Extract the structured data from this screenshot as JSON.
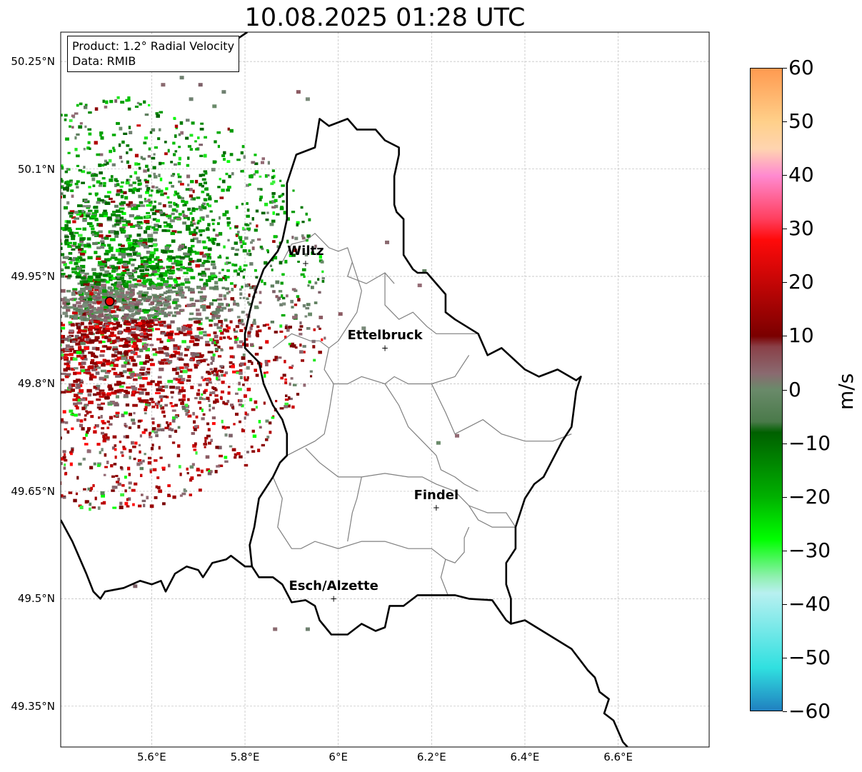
{
  "title": "10.08.2025 01:28 UTC",
  "info": {
    "product": "Product: 1.2° Radial Velocity",
    "data": "Data: RMIB"
  },
  "axes": {
    "lon_range": [
      5.405,
      6.795
    ],
    "lat_range": [
      49.293,
      50.291
    ],
    "lat_ticks": [
      {
        "value": 50.25,
        "label": "50.25°N"
      },
      {
        "value": 50.1,
        "label": "50.1°N"
      },
      {
        "value": 49.95,
        "label": "49.95°N"
      },
      {
        "value": 49.8,
        "label": "49.8°N"
      },
      {
        "value": 49.65,
        "label": "49.65°N"
      },
      {
        "value": 49.5,
        "label": "49.5°N"
      },
      {
        "value": 49.35,
        "label": "49.35°N"
      }
    ],
    "lon_ticks": [
      {
        "value": 5.6,
        "label": "5.6°E"
      },
      {
        "value": 5.8,
        "label": "5.8°E"
      },
      {
        "value": 6.0,
        "label": "6°E"
      },
      {
        "value": 6.2,
        "label": "6.2°E"
      },
      {
        "value": 6.4,
        "label": "6.4°E"
      },
      {
        "value": 6.6,
        "label": "6.6°E"
      }
    ],
    "grid": true
  },
  "radar": {
    "lon": 5.51,
    "lat": 49.915,
    "marker_color": "#ee0000"
  },
  "cities": [
    {
      "name": "Wiltz",
      "lon": 5.93,
      "lat": 49.968
    },
    {
      "name": "Ettelbruck",
      "lon": 6.1,
      "lat": 49.85
    },
    {
      "name": "Findel",
      "lon": 6.21,
      "lat": 49.627
    },
    {
      "name": "Esch/Alzette",
      "lon": 5.99,
      "lat": 49.5
    }
  ],
  "colorbar": {
    "label": "m/s",
    "min": -60,
    "max": 60,
    "ticks": [
      {
        "value": 60,
        "label": "60"
      },
      {
        "value": 50,
        "label": "50"
      },
      {
        "value": 40,
        "label": "40"
      },
      {
        "value": 30,
        "label": "30"
      },
      {
        "value": 20,
        "label": "20"
      },
      {
        "value": 10,
        "label": "10"
      },
      {
        "value": 0,
        "label": "0"
      },
      {
        "value": -10,
        "label": "−10"
      },
      {
        "value": -20,
        "label": "−20"
      },
      {
        "value": -30,
        "label": "−30"
      },
      {
        "value": -40,
        "label": "−40"
      },
      {
        "value": -50,
        "label": "−50"
      },
      {
        "value": -60,
        "label": "−60"
      }
    ],
    "stops": [
      {
        "value": 60,
        "color": "#ff9a50"
      },
      {
        "value": 50,
        "color": "#ffd08a"
      },
      {
        "value": 45,
        "color": "#ffd4b0"
      },
      {
        "value": 40,
        "color": "#ff8ad0"
      },
      {
        "value": 32,
        "color": "#ff4060"
      },
      {
        "value": 28,
        "color": "#ff0a0a"
      },
      {
        "value": 10,
        "color": "#7a0000"
      },
      {
        "value": 8,
        "color": "#8a4048"
      },
      {
        "value": 3,
        "color": "#8a6a70"
      },
      {
        "value": 0,
        "color": "#6a8a6a"
      },
      {
        "value": -6,
        "color": "#4a7a4a"
      },
      {
        "value": -8,
        "color": "#006000"
      },
      {
        "value": -20,
        "color": "#00b000"
      },
      {
        "value": -28,
        "color": "#00ff00"
      },
      {
        "value": -35,
        "color": "#90f0b0"
      },
      {
        "value": -38,
        "color": "#b8f0f0"
      },
      {
        "value": -52,
        "color": "#30e0e0"
      },
      {
        "value": -60,
        "color": "#2080c0"
      }
    ]
  },
  "borders": {
    "national": [
      [
        [
          5.405,
          49.61
        ],
        [
          5.43,
          49.58
        ],
        [
          5.46,
          49.535
        ],
        [
          5.475,
          49.51
        ],
        [
          5.49,
          49.5
        ],
        [
          5.5,
          49.51
        ],
        [
          5.54,
          49.515
        ],
        [
          5.575,
          49.525
        ],
        [
          5.6,
          49.52
        ],
        [
          5.62,
          49.525
        ],
        [
          5.63,
          49.51
        ],
        [
          5.65,
          49.535
        ],
        [
          5.675,
          49.545
        ],
        [
          5.7,
          49.54
        ],
        [
          5.71,
          49.53
        ],
        [
          5.73,
          49.55
        ],
        [
          5.76,
          49.555
        ],
        [
          5.77,
          49.56
        ],
        [
          5.8,
          49.545
        ],
        [
          5.815,
          49.545
        ],
        [
          5.83,
          49.53
        ],
        [
          5.86,
          49.53
        ],
        [
          5.88,
          49.52
        ],
        [
          5.9,
          49.495
        ],
        [
          5.93,
          49.498
        ],
        [
          5.95,
          49.49
        ],
        [
          5.96,
          49.47
        ],
        [
          5.985,
          49.45
        ],
        [
          6.02,
          49.45
        ],
        [
          6.05,
          49.465
        ],
        [
          6.08,
          49.455
        ],
        [
          6.1,
          49.46
        ],
        [
          6.11,
          49.49
        ],
        [
          6.14,
          49.49
        ],
        [
          6.17,
          49.505
        ],
        [
          6.21,
          49.505
        ],
        [
          6.25,
          49.505
        ],
        [
          6.28,
          49.5
        ],
        [
          6.33,
          49.498
        ],
        [
          6.36,
          49.47
        ],
        [
          6.37,
          49.465
        ],
        [
          6.4,
          49.47
        ],
        [
          6.45,
          49.45
        ],
        [
          6.5,
          49.43
        ],
        [
          6.535,
          49.4
        ],
        [
          6.55,
          49.39
        ],
        [
          6.56,
          49.37
        ],
        [
          6.58,
          49.36
        ],
        [
          6.57,
          49.34
        ],
        [
          6.59,
          49.33
        ],
        [
          6.61,
          49.3
        ],
        [
          6.62,
          49.293
        ]
      ],
      [
        [
          5.805,
          50.291
        ],
        [
          5.78,
          50.28
        ],
        [
          5.77,
          50.27
        ]
      ],
      [
        [
          5.82,
          49.925
        ],
        [
          5.84,
          49.96
        ],
        [
          5.87,
          49.985
        ],
        [
          5.88,
          50.0
        ],
        [
          5.89,
          50.03
        ],
        [
          5.89,
          50.08
        ],
        [
          5.91,
          50.12
        ],
        [
          5.95,
          50.13
        ],
        [
          5.96,
          50.17
        ],
        [
          5.98,
          50.16
        ],
        [
          6.02,
          50.17
        ],
        [
          6.04,
          50.155
        ],
        [
          6.08,
          50.155
        ],
        [
          6.1,
          50.14
        ],
        [
          6.13,
          50.13
        ],
        [
          6.13,
          50.12
        ],
        [
          6.12,
          50.09
        ],
        [
          6.12,
          50.05
        ],
        [
          6.125,
          50.04
        ],
        [
          6.14,
          50.03
        ],
        [
          6.14,
          49.98
        ],
        [
          6.16,
          49.96
        ],
        [
          6.17,
          49.955
        ],
        [
          6.19,
          49.955
        ],
        [
          6.21,
          49.94
        ],
        [
          6.23,
          49.925
        ],
        [
          6.23,
          49.9
        ],
        [
          6.25,
          49.89
        ],
        [
          6.3,
          49.87
        ],
        [
          6.32,
          49.84
        ],
        [
          6.35,
          49.85
        ],
        [
          6.4,
          49.82
        ],
        [
          6.43,
          49.81
        ],
        [
          6.47,
          49.82
        ],
        [
          6.51,
          49.805
        ],
        [
          6.52,
          49.81
        ],
        [
          6.51,
          49.79
        ],
        [
          6.5,
          49.74
        ],
        [
          6.48,
          49.72
        ],
        [
          6.44,
          49.67
        ],
        [
          6.42,
          49.66
        ],
        [
          6.4,
          49.64
        ],
        [
          6.38,
          49.6
        ],
        [
          6.38,
          49.57
        ],
        [
          6.36,
          49.55
        ],
        [
          6.36,
          49.52
        ],
        [
          6.37,
          49.5
        ],
        [
          6.37,
          49.465
        ]
      ],
      [
        [
          5.82,
          49.925
        ],
        [
          5.81,
          49.9
        ],
        [
          5.8,
          49.87
        ],
        [
          5.8,
          49.85
        ],
        [
          5.83,
          49.83
        ],
        [
          5.84,
          49.8
        ],
        [
          5.86,
          49.77
        ],
        [
          5.88,
          49.75
        ],
        [
          5.89,
          49.73
        ],
        [
          5.89,
          49.7
        ],
        [
          5.875,
          49.69
        ],
        [
          5.86,
          49.67
        ],
        [
          5.83,
          49.64
        ],
        [
          5.82,
          49.6
        ],
        [
          5.81,
          49.575
        ],
        [
          5.815,
          49.545
        ]
      ]
    ],
    "cantonal": [
      [
        [
          5.88,
          49.97
        ],
        [
          5.9,
          49.995
        ],
        [
          5.93,
          50.0
        ],
        [
          5.95,
          50.01
        ],
        [
          5.98,
          49.99
        ],
        [
          6.0,
          49.985
        ],
        [
          6.02,
          49.99
        ],
        [
          6.03,
          49.97
        ],
        [
          6.02,
          49.95
        ],
        [
          6.06,
          49.94
        ],
        [
          6.1,
          49.955
        ],
        [
          6.12,
          49.94
        ]
      ],
      [
        [
          6.03,
          49.97
        ],
        [
          6.05,
          49.93
        ],
        [
          6.04,
          49.9
        ],
        [
          6.02,
          49.88
        ],
        [
          6.0,
          49.86
        ],
        [
          5.98,
          49.85
        ],
        [
          5.96,
          49.86
        ],
        [
          5.94,
          49.86
        ],
        [
          5.9,
          49.87
        ],
        [
          5.88,
          49.86
        ],
        [
          5.86,
          49.85
        ]
      ],
      [
        [
          6.1,
          49.955
        ],
        [
          6.1,
          49.91
        ],
        [
          6.13,
          49.89
        ],
        [
          6.16,
          49.9
        ],
        [
          6.19,
          49.88
        ],
        [
          6.21,
          49.87
        ],
        [
          6.27,
          49.87
        ],
        [
          6.3,
          49.87
        ]
      ],
      [
        [
          5.98,
          49.85
        ],
        [
          5.97,
          49.82
        ],
        [
          5.99,
          49.8
        ],
        [
          6.02,
          49.8
        ],
        [
          6.05,
          49.81
        ],
        [
          6.1,
          49.8
        ],
        [
          6.12,
          49.81
        ],
        [
          6.15,
          49.8
        ],
        [
          6.2,
          49.8
        ],
        [
          6.25,
          49.81
        ],
        [
          6.28,
          49.84
        ]
      ],
      [
        [
          5.99,
          49.8
        ],
        [
          5.98,
          49.76
        ],
        [
          5.97,
          49.73
        ],
        [
          5.95,
          49.72
        ],
        [
          5.92,
          49.71
        ],
        [
          5.89,
          49.7
        ]
      ],
      [
        [
          6.1,
          49.8
        ],
        [
          6.13,
          49.77
        ],
        [
          6.15,
          49.74
        ],
        [
          6.18,
          49.72
        ],
        [
          6.21,
          49.7
        ],
        [
          6.22,
          49.68
        ],
        [
          6.25,
          49.67
        ],
        [
          6.27,
          49.66
        ],
        [
          6.3,
          49.65
        ]
      ],
      [
        [
          6.2,
          49.8
        ],
        [
          6.23,
          49.76
        ],
        [
          6.25,
          49.73
        ],
        [
          6.28,
          49.74
        ],
        [
          6.31,
          49.75
        ],
        [
          6.35,
          49.73
        ],
        [
          6.4,
          49.72
        ],
        [
          6.46,
          49.72
        ],
        [
          6.5,
          49.73
        ]
      ],
      [
        [
          5.93,
          49.71
        ],
        [
          5.96,
          49.69
        ],
        [
          6.0,
          49.67
        ],
        [
          6.05,
          49.67
        ],
        [
          6.1,
          49.675
        ],
        [
          6.15,
          49.67
        ],
        [
          6.18,
          49.67
        ],
        [
          6.21,
          49.66
        ],
        [
          6.25,
          49.65
        ],
        [
          6.28,
          49.63
        ],
        [
          6.3,
          49.61
        ],
        [
          6.33,
          49.6
        ],
        [
          6.38,
          49.6
        ]
      ],
      [
        [
          5.86,
          49.67
        ],
        [
          5.88,
          49.64
        ],
        [
          5.87,
          49.6
        ],
        [
          5.9,
          49.57
        ],
        [
          5.92,
          49.57
        ],
        [
          5.95,
          49.58
        ],
        [
          6.0,
          49.57
        ],
        [
          6.05,
          49.58
        ],
        [
          6.1,
          49.58
        ],
        [
          6.15,
          49.57
        ],
        [
          6.2,
          49.57
        ],
        [
          6.23,
          49.555
        ],
        [
          6.25,
          49.55
        ],
        [
          6.27,
          49.565
        ],
        [
          6.27,
          49.585
        ],
        [
          6.28,
          49.6
        ]
      ],
      [
        [
          6.05,
          49.67
        ],
        [
          6.04,
          49.64
        ],
        [
          6.03,
          49.62
        ],
        [
          6.02,
          49.58
        ]
      ],
      [
        [
          6.23,
          49.555
        ],
        [
          6.22,
          49.53
        ],
        [
          6.235,
          49.505
        ]
      ],
      [
        [
          6.28,
          49.63
        ],
        [
          6.32,
          49.62
        ],
        [
          6.36,
          49.62
        ],
        [
          6.38,
          49.6
        ]
      ]
    ]
  }
}
